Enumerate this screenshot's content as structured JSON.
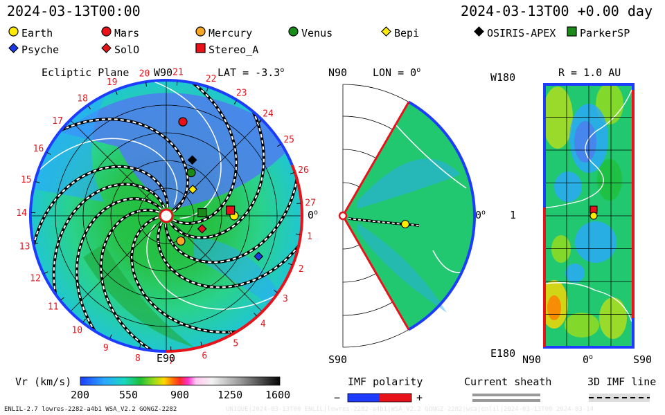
{
  "header": {
    "date_left": "2024-03-13T00:00",
    "date_right": "2024-03-13T00 +0.00 day"
  },
  "legend": [
    {
      "name": "Earth",
      "shape": "circle",
      "color": "#ffeb00"
    },
    {
      "name": "Mars",
      "shape": "circle",
      "color": "#e8121a"
    },
    {
      "name": "Mercury",
      "shape": "circle",
      "color": "#f5a623"
    },
    {
      "name": "Venus",
      "shape": "circle",
      "color": "#1a8a1a"
    },
    {
      "name": "Bepi",
      "shape": "diamond",
      "color": "#ffeb00"
    },
    {
      "name": "OSIRIS-APEX",
      "shape": "diamond",
      "color": "#000000"
    },
    {
      "name": "ParkerSP",
      "shape": "square",
      "color": "#1a8a1a"
    },
    {
      "name": "Psyche",
      "shape": "diamond",
      "color": "#1a3ae8"
    },
    {
      "name": "SolO",
      "shape": "diamond",
      "color": "#e8121a"
    },
    {
      "name": "Stereo_A",
      "shape": "square",
      "color": "#e8121a"
    }
  ],
  "panels": {
    "ecliptic": {
      "title": "Ecliptic Plane",
      "lat_label": "LAT = -3.3",
      "top_label": "W90",
      "bottom_label": "E90",
      "right_label": "0",
      "carrington_labels": [
        "1",
        "2",
        "3",
        "4",
        "5",
        "6",
        "7",
        "8",
        "9",
        "10",
        "11",
        "12",
        "13",
        "14",
        "15",
        "16",
        "17",
        "18",
        "19",
        "20",
        "21",
        "22",
        "23",
        "24",
        "25",
        "26",
        "27"
      ]
    },
    "meridional": {
      "lon_label": "LON = 0",
      "top_label": "N90",
      "bottom_label": "S90",
      "right_label": "0"
    },
    "rmap": {
      "title": "R = 1.0 AU",
      "top_left": "W180",
      "mid_left": "1",
      "bottom_left": "E180",
      "bottom_axis": [
        "N90",
        "0",
        "S90"
      ]
    }
  },
  "colorbar": {
    "label": "Vr (km/s)",
    "ticks": [
      "200",
      "550",
      "900",
      "1250",
      "1600"
    ],
    "min": 200,
    "max": 1600
  },
  "imf": {
    "title": "IMF polarity",
    "minus": "−",
    "plus": "+",
    "sheath_title": "Current sheath",
    "line_title": "3D IMF line"
  },
  "footer": {
    "left": "ENLIL-2.7 lowres-2282-a4b1 WSA_V2.2 GONGZ-2282",
    "right": "UNIQUE|2024-03-13T00 ENLIL|lowres-2282-a4b1|WSA_V2.2 GONGZ-2282|wsa|enlil|2024-03-13T00  2024-03-14"
  },
  "chart_data": {
    "type": "heatmap",
    "quantity": "Vr (km/s)",
    "range": [
      200,
      1600
    ],
    "bodies": [
      {
        "name": "Earth",
        "lon_deg": 0
      },
      {
        "name": "Stereo_A",
        "lon_deg": 5
      },
      {
        "name": "Bepi",
        "lon_deg": 45
      },
      {
        "name": "Mercury",
        "lon_deg": -60
      },
      {
        "name": "SolO",
        "lon_deg": -20
      },
      {
        "name": "Psyche",
        "lon_deg": -37
      },
      {
        "name": "ParkerSP",
        "lon_deg": 5
      },
      {
        "name": "Venus",
        "lon_deg": 60
      },
      {
        "name": "OSIRIS-APEX",
        "lon_deg": 65
      },
      {
        "name": "Mars",
        "lon_deg": 80
      }
    ]
  }
}
